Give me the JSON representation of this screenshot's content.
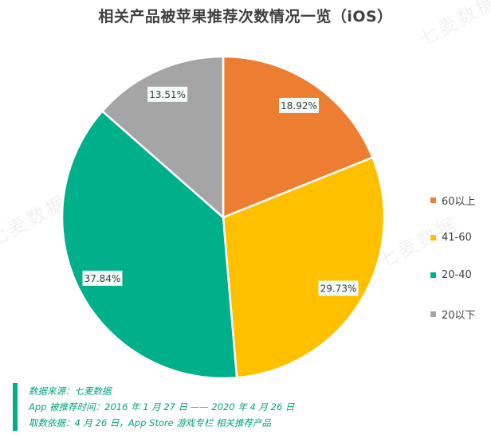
{
  "title": "相关产品被苹果推荐次数情况一览（iOS）",
  "chart_data": {
    "type": "pie",
    "title": "相关产品被苹果推荐次数情况一览（iOS）",
    "slices": [
      {
        "label": "60以上",
        "value": 18.92,
        "value_label": "18.92%",
        "color": "#ed7d31"
      },
      {
        "label": "41-60",
        "value": 29.73,
        "value_label": "29.73%",
        "color": "#ffc000"
      },
      {
        "label": "20-40",
        "value": 37.84,
        "value_label": "37.84%",
        "color": "#00b08a"
      },
      {
        "label": "20以下",
        "value": 13.51,
        "value_label": "13.51%",
        "color": "#a5a5a5"
      }
    ],
    "legend_position": "right"
  },
  "watermark": "七麦数据",
  "source": {
    "line1": "数据来源：七麦数据",
    "line2": "App 被推荐时间：2016 年 1 月 27 日 —— 2020 年 4 月 26 日",
    "line3": "取数依据：4 月 26 日，App Store 游戏专栏 相关推荐产品"
  }
}
